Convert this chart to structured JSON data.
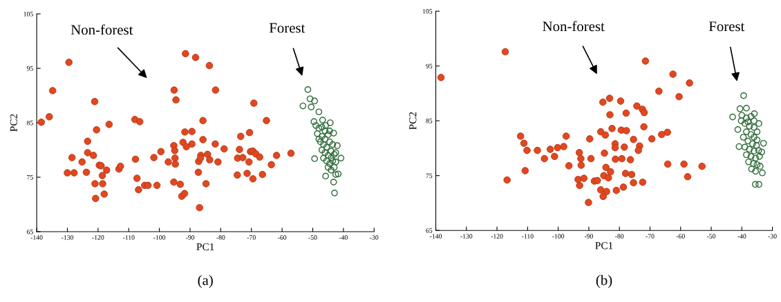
{
  "chart_data": [
    {
      "type": "scatter",
      "xlabel": "PC1",
      "ylabel": "PC2",
      "xlim": [
        -140,
        -30
      ],
      "ylim": [
        65,
        105
      ],
      "xticks": [
        -140,
        -130,
        -120,
        -110,
        -100,
        -90,
        -80,
        -70,
        -60,
        -50,
        -40,
        -30
      ],
      "yticks": [
        65,
        75,
        85,
        95,
        105
      ],
      "marker": "circle",
      "series": [
        {
          "color": "#e2471f",
          "x": [
            -129.5,
            -134.8,
            -138.5,
            -135.9,
            -121.1,
            -120.5,
            -116.4,
            -123.4,
            -123.4,
            -121.5,
            -128.5,
            -125.2,
            -130,
            -127.8,
            -123.8,
            -119.6,
            -119,
            -117.2,
            -118.6,
            -121,
            -118.5,
            -118,
            -120.8,
            -113.2,
            -112.7,
            -108,
            -106.4,
            -107.8,
            -107.3,
            -106.8,
            -104.8,
            -103.7,
            -100.8,
            -101.8,
            -99.5,
            -97.1,
            -95.2,
            -94.6,
            -95.3,
            -95,
            -94.9,
            -94.8,
            -95.3,
            -93.2,
            -92.7,
            -91.8,
            -91.5,
            -88.2,
            -91.7,
            -89.4,
            -92.3,
            -91.2,
            -89.4,
            -87.3,
            -87.2,
            -86.5,
            -86.9,
            -83.7,
            -81.7,
            -69.2,
            -85.8,
            -65.1,
            -85.8,
            -81.8,
            -78.9,
            -73.5,
            -70.6,
            -73.9,
            -70.3,
            -69.5,
            -68.6,
            -67.3,
            -74.5,
            -72.8,
            -70.8,
            -61.8,
            -57.1,
            -63.5,
            -80.9,
            -86.6,
            -84.3,
            -83.6,
            -74.6,
            -71.4,
            -69.5,
            -66.4,
            -84.8
          ],
          "values": [
            96.1,
            90.9,
            85.1,
            86.1,
            88.9,
            83.7,
            84.7,
            81.6,
            79.5,
            79.0,
            78.6,
            77.8,
            75.8,
            75.8,
            75.9,
            77.2,
            77.1,
            76.3,
            75.3,
            73.8,
            73.8,
            71.9,
            71.1,
            76.5,
            77.0,
            85.6,
            85.2,
            78.3,
            74.8,
            72.7,
            73.5,
            73.5,
            73.5,
            78.6,
            79.7,
            77.8,
            91.0,
            89.2,
            80.8,
            79.9,
            78.5,
            77.4,
            74.1,
            73.7,
            71.5,
            72.0,
            97.7,
            97.0,
            83.3,
            83.4,
            81.4,
            80.6,
            81.1,
            75.9,
            77.9,
            79.0,
            69.4,
            95.5,
            91.0,
            88.6,
            85.4,
            85.4,
            81.9,
            81.1,
            80.2,
            82.5,
            83.2,
            80.1,
            79.7,
            79.8,
            79.3,
            78.7,
            78.5,
            78.6,
            77.8,
            79.0,
            79.4,
            77.3,
            77.8,
            78.5,
            79.2,
            78.2,
            75.4,
            75.7,
            74.7,
            75.5,
            73.8
          ]
        },
        {
          "color": "#2f6b3a",
          "x": [
            -51.6,
            -50.9,
            -49.4,
            -53.2,
            -50.5,
            -48.0,
            -49.6,
            -44.3,
            -43.2,
            -42.0,
            -40.8,
            -49.4,
            -41.7,
            -43.2,
            -42.9,
            -45.8,
            -49,
            -48,
            -47,
            -46,
            -48.5,
            -47,
            -46,
            -45,
            -44.5,
            -47.5,
            -46.5,
            -45.5,
            -44.5,
            -43.5,
            -47,
            -46,
            -45,
            -44,
            -43,
            -46.5,
            -45.5,
            -44.5,
            -43.5,
            -42.5,
            -45,
            -44,
            -43,
            -42.5,
            -48,
            -45.8,
            -46.8,
            -44,
            -42.5
          ],
          "values": [
            91.1,
            89.4,
            89.0,
            88.1,
            87.9,
            87.0,
            85.2,
            85.0,
            83.1,
            80.8,
            78.5,
            78.4,
            75.6,
            74.1,
            72.1,
            75.2,
            84.5,
            84,
            84.2,
            83.5,
            83,
            82.5,
            82,
            82.8,
            83.5,
            81.5,
            81,
            80.5,
            81.5,
            81,
            80,
            79.5,
            79,
            79.8,
            79.2,
            78.5,
            78,
            77.5,
            78,
            77.8,
            76.8,
            76.3,
            76.8,
            79.5,
            82,
            84.5,
            85.5,
            78.6,
            75.5
          ]
        }
      ],
      "annotations": [
        "Non-forest",
        "Forest",
        "(a)"
      ]
    },
    {
      "type": "scatter",
      "xlabel": "PC1",
      "ylabel": "PC2",
      "xlim": [
        -140,
        -30
      ],
      "ylim": [
        65,
        105
      ],
      "xticks": [
        -140,
        -130,
        -120,
        -110,
        -100,
        -90,
        -80,
        -70,
        -60,
        -50,
        -40,
        -30
      ],
      "yticks": [
        65,
        75,
        85,
        95,
        105
      ],
      "marker": "circle",
      "series": [
        {
          "color": "#e2471f",
          "x": [
            -117.3,
            -138.3,
            -112.3,
            -111.2,
            -110.2,
            -106.8,
            -104.5,
            -102.6,
            -101.2,
            -100.2,
            -98.2,
            -97.4,
            -96.5,
            -110.8,
            -116.7,
            -93.1,
            -92.6,
            -92.5,
            -93.5,
            -93.0,
            -91.6,
            -90.1,
            -89.7,
            -89.3,
            -88.2,
            -71.5,
            -62.5,
            -57.1,
            -67.1,
            -60.5,
            -85.4,
            -83.2,
            -79.6,
            -74.3,
            -72.5,
            -71.9,
            -83.1,
            -77.8,
            -72.0,
            -86.1,
            -84.6,
            -82.4,
            -79.4,
            -77.7,
            -75.4,
            -69.4,
            -66.2,
            -64.3,
            -81.4,
            -81.4,
            -78.4,
            -73.4,
            -73.8,
            -84.9,
            -81.3,
            -79.2,
            -76.4,
            -64.2,
            -58.9,
            -53.0,
            -57.7,
            -84.4,
            -82.9,
            -85.1,
            -83.6,
            -78.0,
            -76.0,
            -75.4,
            -72.4,
            -87.2,
            -86.1,
            -84.2,
            -85.3,
            -81.0,
            -78.7
          ],
          "values": [
            97.6,
            92.9,
            82.2,
            80.9,
            79.6,
            79.6,
            78.1,
            79.8,
            78.5,
            80.1,
            80.3,
            82.2,
            76.8,
            75.9,
            74.2,
            79.2,
            78.1,
            76.9,
            74.3,
            73.2,
            74.5,
            70.1,
            81.7,
            78.1,
            74.0,
            95.9,
            93.5,
            91.9,
            90.4,
            89.4,
            88.4,
            89.1,
            88.6,
            87.7,
            87.1,
            86.5,
            86.1,
            86.4,
            83.9,
            83.0,
            82.4,
            83.6,
            83.3,
            83.2,
            81.6,
            81.7,
            82.5,
            82.9,
            80.8,
            80.1,
            80.2,
            80.4,
            79.6,
            79.1,
            78.0,
            78.1,
            77.9,
            77.1,
            77.1,
            76.7,
            74.8,
            76.5,
            75.7,
            75.0,
            74.6,
            75.4,
            75.2,
            73.7,
            73.8,
            74.1,
            72.4,
            72.1,
            71.2,
            72.3,
            72.9
          ]
        },
        {
          "color": "#2f6b3a",
          "x": [
            -39.4,
            -43.0,
            -40.6,
            -38.5,
            -35.9,
            -34.4,
            -41.3,
            -40.9,
            -32.9,
            -33.3,
            -35.6,
            -34.4,
            -34.0,
            -40,
            -38.5,
            -37,
            -36,
            -39,
            -37.5,
            -36,
            -35,
            -38.5,
            -37,
            -39.5,
            -36,
            -35,
            -38,
            -36.5,
            -35.2,
            -39,
            -37.5,
            -36,
            -34.5,
            -38.5,
            -37,
            -35.5,
            -34.2,
            -37.8,
            -36.2,
            -35,
            -36.8,
            -35.5,
            -38,
            -40.2,
            -33.5
          ],
          "values": [
            89.6,
            85.7,
            87.2,
            87.3,
            86.3,
            84.5,
            83.4,
            80.3,
            80.9,
            75.5,
            73.4,
            73.4,
            76.7,
            86,
            85.5,
            85.8,
            85,
            84.5,
            84,
            83.8,
            83,
            83,
            82.5,
            82,
            82,
            81.5,
            81.3,
            80.8,
            80.5,
            80.2,
            79.8,
            79.5,
            79.6,
            78.8,
            78.5,
            78.2,
            78.5,
            77.5,
            77.2,
            77,
            76.2,
            75.8,
            84.8,
            85,
            79.3
          ]
        }
      ],
      "annotations": [
        "Non-forest",
        "Forest",
        "(b)"
      ]
    }
  ]
}
